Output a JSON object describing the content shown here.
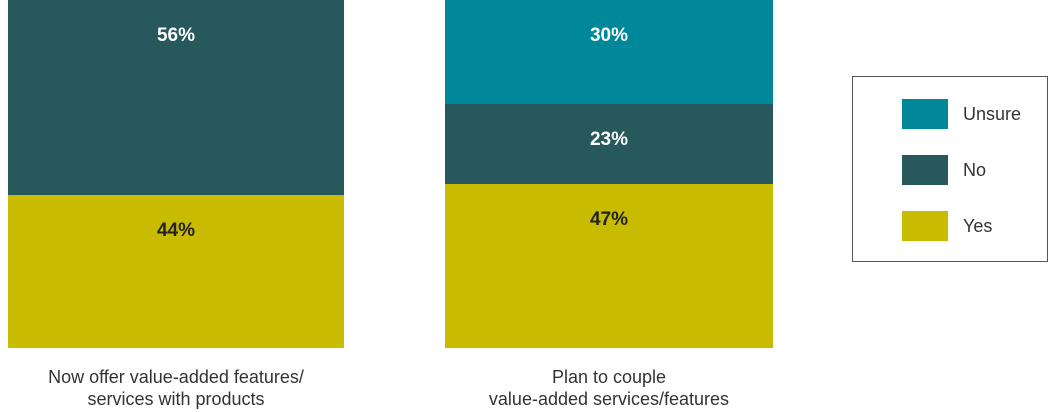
{
  "chart_data": {
    "type": "stacked-bar",
    "categories": [
      "Now offer value-added features/\nservices with products",
      "Plan to couple\nvalue-added services/features"
    ],
    "series": [
      {
        "name": "Yes",
        "color": "#c9bb00",
        "values": [
          44,
          47
        ],
        "value_labels": [
          "44%",
          "47%"
        ]
      },
      {
        "name": "No",
        "color": "#26585c",
        "values": [
          56,
          23
        ],
        "value_labels": [
          "56%",
          "23%"
        ]
      },
      {
        "name": "Unsure",
        "color": "#00879a",
        "values": [
          null,
          30
        ],
        "value_labels": [
          null,
          "30%"
        ]
      }
    ],
    "ylim": [
      0,
      100
    ],
    "legend": "right"
  }
}
